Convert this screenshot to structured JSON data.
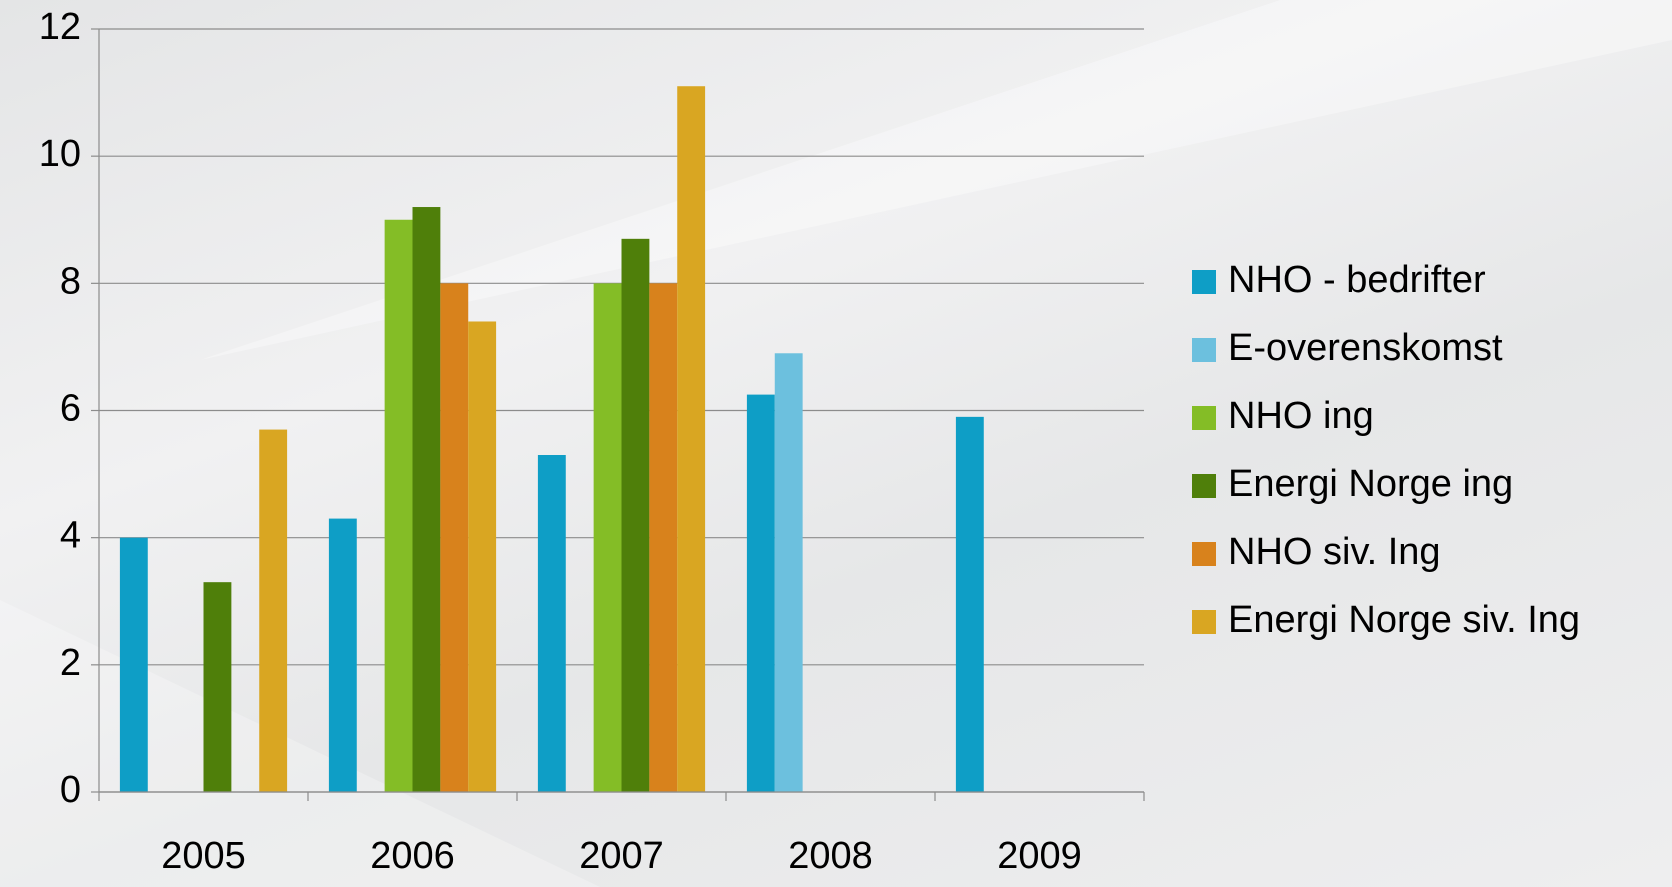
{
  "chart_data": {
    "type": "bar",
    "categories": [
      "2005",
      "2006",
      "2007",
      "2008",
      "2009"
    ],
    "series": [
      {
        "name": "NHO - bedrifter",
        "color": "#0e9ec6",
        "values": [
          4,
          4.3,
          5.3,
          6.25,
          5.9
        ]
      },
      {
        "name": "E-overenskomst",
        "color": "#6cc0de",
        "values": [
          null,
          null,
          null,
          6.9,
          null
        ]
      },
      {
        "name": "NHO ing",
        "color": "#84bd26",
        "values": [
          null,
          9,
          8,
          null,
          null
        ]
      },
      {
        "name": "Energi Norge ing",
        "color": "#4f7f0a",
        "values": [
          3.3,
          9.2,
          8.7,
          null,
          null
        ]
      },
      {
        "name": "NHO siv. Ing",
        "color": "#d8821c",
        "values": [
          null,
          8,
          8,
          null,
          null
        ]
      },
      {
        "name": "Energi Norge siv. Ing",
        "color": "#d9a622",
        "values": [
          5.7,
          7.4,
          11.1,
          null,
          null
        ]
      }
    ],
    "ylim": [
      0,
      12
    ],
    "yticks": [
      0,
      2,
      4,
      6,
      8,
      10,
      12
    ],
    "grid": true,
    "legend": "right"
  }
}
